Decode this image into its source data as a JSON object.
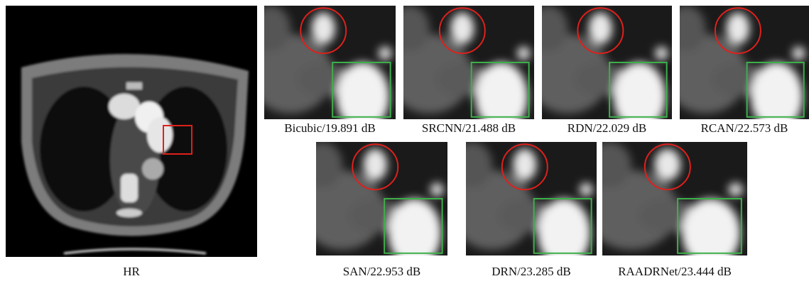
{
  "figure": {
    "hr": {
      "label": "HR"
    },
    "panels": [
      {
        "label": "Bicubic/19.891 dB"
      },
      {
        "label": "SRCNN/21.488 dB"
      },
      {
        "label": "RDN/22.029 dB"
      },
      {
        "label": "RCAN/22.573 dB"
      },
      {
        "label": "SAN/22.953 dB"
      },
      {
        "label": "DRN/23.285 dB"
      },
      {
        "label": "RAADRNet/23.444 dB"
      }
    ]
  }
}
